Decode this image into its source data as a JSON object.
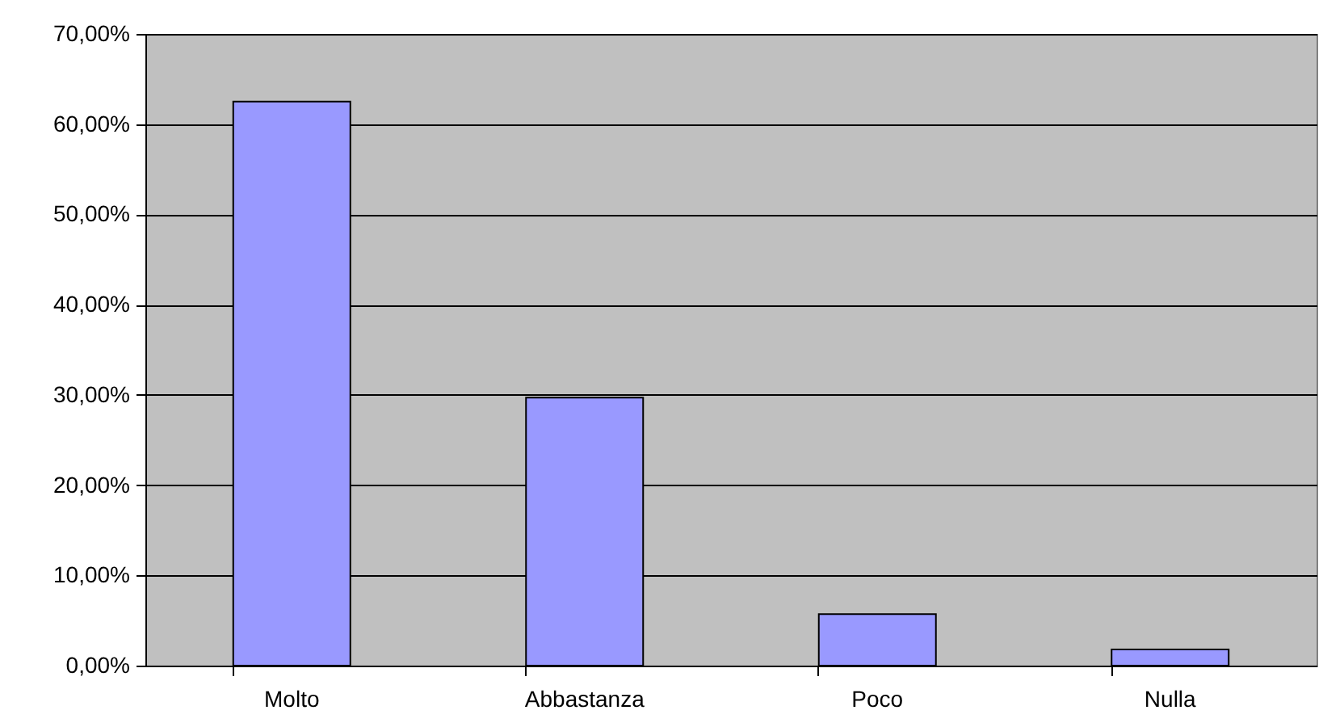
{
  "chart_data": {
    "type": "bar",
    "categories": [
      "Molto",
      "Abbastanza",
      "Poco",
      "Nulla"
    ],
    "values": [
      62.5,
      29.7,
      5.7,
      1.8
    ],
    "color": "#9999ff",
    "ylim": [
      0,
      70
    ],
    "yticks": [
      {
        "value": 0,
        "label": "0,00%"
      },
      {
        "value": 10,
        "label": "10,00%"
      },
      {
        "value": 20,
        "label": "20,00%"
      },
      {
        "value": 30,
        "label": "30,00%"
      },
      {
        "value": 40,
        "label": "40,00%"
      },
      {
        "value": 50,
        "label": "50,00%"
      },
      {
        "value": 60,
        "label": "60,00%"
      },
      {
        "value": 70,
        "label": "70,00%"
      }
    ],
    "grid": "y"
  }
}
